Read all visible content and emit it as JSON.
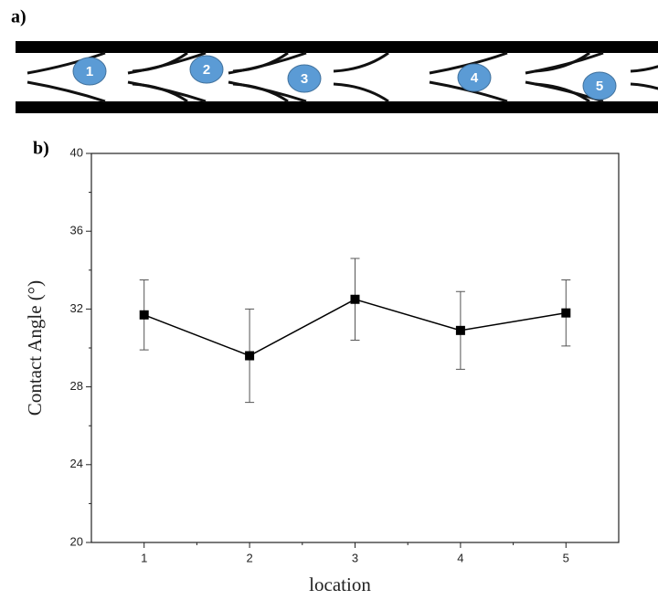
{
  "diagram": {
    "panel_label": "a)",
    "nodes": [
      {
        "label": "1"
      },
      {
        "label": "2"
      },
      {
        "label": "3"
      },
      {
        "label": "4"
      },
      {
        "label": "5"
      }
    ]
  },
  "chart_data": {
    "type": "line",
    "panel_label": "b)",
    "xlabel": "location",
    "ylabel": "Contact Angle (°)",
    "x": [
      1,
      2,
      3,
      4,
      5
    ],
    "series": [
      {
        "color": "#000000",
        "values": [
          31.7,
          29.6,
          32.5,
          30.9,
          31.8
        ],
        "errors": [
          1.8,
          2.4,
          2.1,
          2.0,
          1.7
        ]
      }
    ],
    "xlim": [
      0.5,
      5.5
    ],
    "xticks": [
      1,
      2,
      3,
      4,
      5
    ],
    "xminorticks": [
      1.5,
      2.5,
      3.5,
      4.5
    ],
    "ylim": [
      20,
      40
    ],
    "yticks": [
      20,
      24,
      28,
      32,
      36,
      40
    ],
    "yminorticks": [
      22,
      26,
      30,
      34,
      38
    ]
  }
}
